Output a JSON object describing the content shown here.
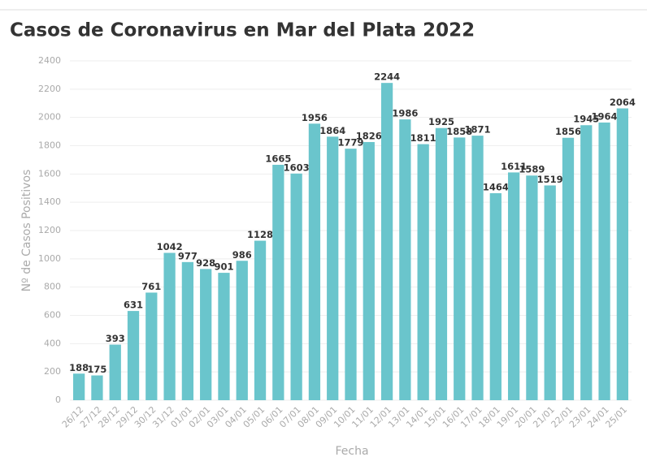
{
  "chart_data": {
    "type": "bar",
    "title": "Casos de Coronavirus en Mar del Plata 2022",
    "x_label": "Fecha",
    "y_label": "Nº de Casos Positivos",
    "categories": [
      "26/12",
      "27/12",
      "28/12",
      "29/12",
      "30/12",
      "31/12",
      "01/01",
      "02/01",
      "03/01",
      "04/01",
      "05/01",
      "06/01",
      "07/01",
      "08/01",
      "09/01",
      "10/01",
      "11/01",
      "12/01",
      "13/01",
      "14/01",
      "15/01",
      "16/01",
      "17/01",
      "18/01",
      "19/01",
      "20/01",
      "21/01",
      "22/01",
      "23/01",
      "24/01",
      "25/01"
    ],
    "values": [
      188,
      175,
      393,
      631,
      761,
      1042,
      977,
      928,
      901,
      986,
      1128,
      1665,
      1603,
      1956,
      1864,
      1779,
      1826,
      2244,
      1986,
      1811,
      1925,
      1858,
      1871,
      1464,
      1611,
      1589,
      1519,
      1856,
      1945,
      1964,
      2064
    ],
    "color": "#6ac5cc",
    "ylim": [
      0,
      2400
    ],
    "yticks": [
      0,
      200,
      400,
      600,
      800,
      1000,
      1200,
      1400,
      1600,
      1800,
      2000,
      2200,
      2400
    ],
    "grid": true
  }
}
